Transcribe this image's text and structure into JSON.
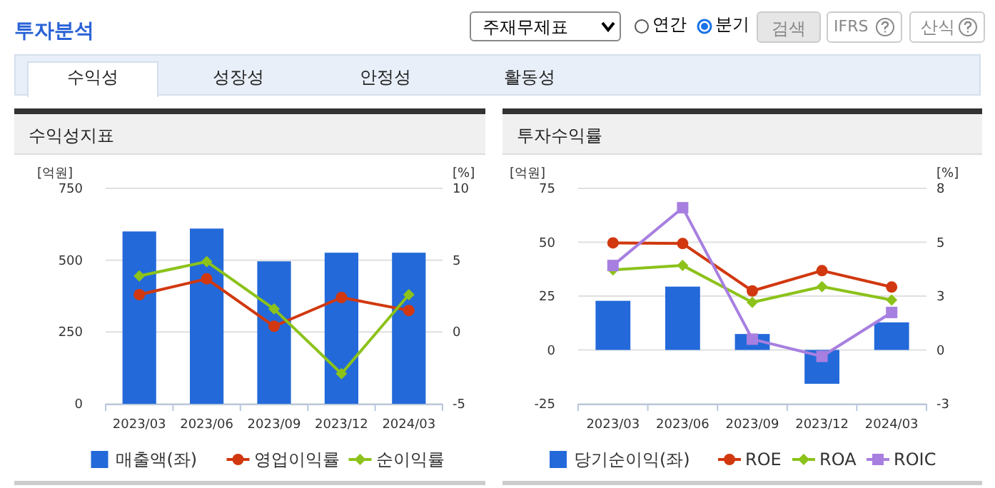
{
  "chart_data": [
    {
      "type": "other",
      "title": "투자분석",
      "annotations": [
        "주재무제표",
        "연간",
        "분기",
        "검색",
        "IFRS",
        "산식",
        "수익성",
        "성장성",
        "안정성",
        "활동성"
      ]
    },
    {
      "type": "bar",
      "title": "수익성지표",
      "ylabel": "[억원]",
      "y2label": "[%]",
      "categories": [
        "2023/03",
        "2023/06",
        "2023/09",
        "2023/12",
        "2024/03"
      ],
      "ylim": [
        0,
        750
      ],
      "yticks": [
        0,
        250,
        500,
        750
      ],
      "y2lim": [
        -5,
        10
      ],
      "y2ticks": [
        -5,
        0,
        5,
        10
      ],
      "grid": "y",
      "legend": "bottom",
      "series": [
        {
          "name": "매출액(좌)",
          "type": "bar",
          "color": "#2369d9",
          "values": [
            600,
            610,
            496,
            526,
            526
          ]
        },
        {
          "name": "영업이익률",
          "type": "line",
          "axis": "y2",
          "marker": "circle",
          "color": "#d1380f",
          "values": [
            2.6,
            3.7,
            0.4,
            2.4,
            1.5
          ]
        },
        {
          "name": "순이익률",
          "type": "line",
          "axis": "y2",
          "marker": "diamond",
          "color": "#8cc21a",
          "values": [
            3.9,
            4.9,
            1.6,
            -2.9,
            2.6
          ]
        }
      ]
    },
    {
      "type": "bar",
      "title": "투자수익률",
      "ylabel": "[억원]",
      "y2label": "[%]",
      "categories": [
        "2023/03",
        "2023/06",
        "2023/09",
        "2023/12",
        "2024/03"
      ],
      "ylim": [
        -25,
        75
      ],
      "yticks": [
        -25,
        0,
        25,
        50,
        75
      ],
      "y2lim": [
        -2.5,
        7.5
      ],
      "y2ticks": [
        {
          "value": -2.5,
          "label": "-3"
        },
        0,
        {
          "value": 2.5,
          "label": "3"
        },
        5,
        {
          "value": 7.5,
          "label": "8"
        }
      ],
      "grid": "y",
      "legend": "bottom",
      "series": [
        {
          "name": "당기순이익(좌)",
          "type": "bar",
          "color": "#2369d9",
          "values": [
            22.8,
            29.4,
            7.4,
            -15.7,
            12.8
          ]
        },
        {
          "name": "ROE",
          "type": "line",
          "axis": "y2",
          "marker": "circle",
          "color": "#d1380f",
          "values": [
            4.97,
            4.94,
            2.74,
            3.68,
            2.92
          ]
        },
        {
          "name": "ROA",
          "type": "line",
          "axis": "y2",
          "marker": "diamond",
          "color": "#8cc21a",
          "values": [
            3.72,
            3.92,
            2.21,
            2.94,
            2.32
          ]
        },
        {
          "name": "ROIC",
          "type": "line",
          "axis": "y2",
          "marker": "square",
          "color": "#a77fe0",
          "values": [
            3.92,
            6.6,
            0.5,
            -0.3,
            1.74
          ]
        }
      ]
    }
  ]
}
